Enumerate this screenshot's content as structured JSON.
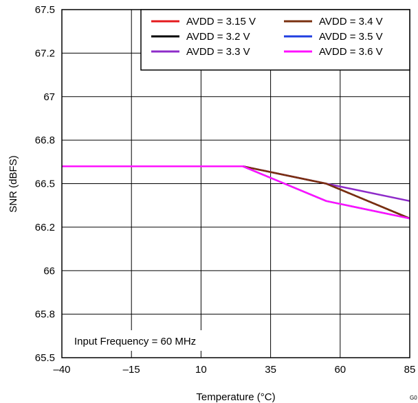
{
  "chart_data": {
    "type": "line",
    "title": "",
    "xlabel": "Temperature (°C)",
    "ylabel": "SNR (dBFS)",
    "xlim": [
      -40,
      85
    ],
    "ylim": [
      65.5,
      67.5
    ],
    "x_ticks": [
      -40,
      -15,
      10,
      35,
      60,
      85
    ],
    "x_tick_labels": [
      "–40",
      "–15",
      "10",
      "35",
      "60",
      "85"
    ],
    "y_ticks": [
      65.5,
      65.75,
      66,
      66.25,
      66.5,
      66.75,
      67,
      67.25,
      67.5
    ],
    "y_tick_labels": [
      "65.5",
      "65.8",
      "66",
      "66.2",
      "66.5",
      "66.8",
      "67",
      "67.2",
      "67.5"
    ],
    "grid": true,
    "legend_position": "top-right",
    "annotation": "Input Frequency = 60 MHz",
    "corner_label": "G0",
    "series": [
      {
        "name": "AVDD = 3.15 V",
        "color": "#e41a1c",
        "x": [
          -40,
          -15,
          10,
          25,
          55,
          85
        ],
        "y": [
          66.6,
          66.6,
          66.6,
          66.6,
          66.5,
          66.3
        ]
      },
      {
        "name": "AVDD = 3.2 V",
        "color": "#000000",
        "x": [
          -40,
          -15,
          10,
          25,
          55,
          85
        ],
        "y": [
          66.6,
          66.6,
          66.6,
          66.6,
          66.5,
          66.3
        ]
      },
      {
        "name": "AVDD = 3.3 V",
        "color": "#8e2bc9",
        "x": [
          -40,
          -15,
          10,
          25,
          55,
          85
        ],
        "y": [
          66.6,
          66.6,
          66.6,
          66.6,
          66.5,
          66.4
        ]
      },
      {
        "name": "AVDD = 3.4 V",
        "color": "#7a3010",
        "x": [
          -40,
          -15,
          10,
          25,
          55,
          85
        ],
        "y": [
          66.6,
          66.6,
          66.6,
          66.6,
          66.5,
          66.3
        ]
      },
      {
        "name": "AVDD = 3.5 V",
        "color": "#1f3ee0",
        "x": [
          -40,
          -15,
          10,
          25,
          55,
          85
        ],
        "y": [
          66.6,
          66.6,
          66.6,
          66.6,
          66.4,
          66.3
        ]
      },
      {
        "name": "AVDD = 3.6 V",
        "color": "#ff10ff",
        "x": [
          -40,
          -15,
          10,
          25,
          55,
          85
        ],
        "y": [
          66.6,
          66.6,
          66.6,
          66.6,
          66.4,
          66.3
        ]
      }
    ]
  }
}
